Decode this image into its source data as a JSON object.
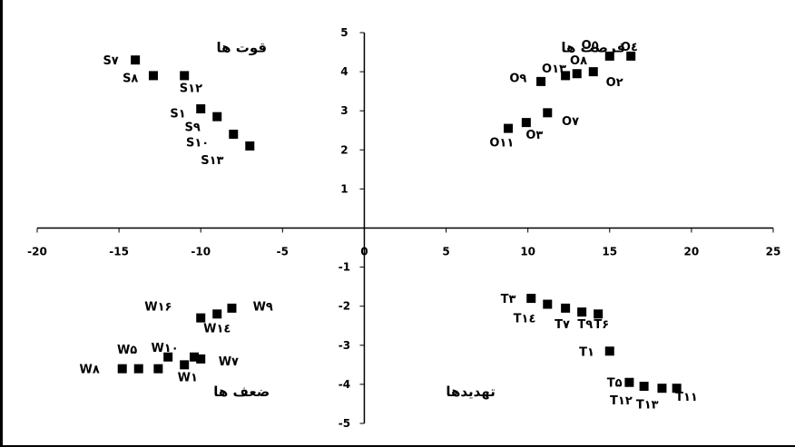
{
  "chart_data": {
    "type": "scatter",
    "title": "",
    "xlabel": "",
    "ylabel": "",
    "xlim": [
      -20,
      25
    ],
    "ylim": [
      -5,
      5
    ],
    "x_ticks": [
      -20,
      -15,
      -10,
      -5,
      0,
      5,
      10,
      15,
      20,
      25
    ],
    "y_ticks": [
      -5,
      -4,
      -3,
      -2,
      -1,
      0,
      1,
      2,
      3,
      4,
      5
    ],
    "x_tick_labels": [
      "-20",
      "-15",
      "-10",
      "-5",
      "0",
      "5",
      "10",
      "15",
      "20",
      "25"
    ],
    "y_tick_labels": [
      "-5",
      "-4",
      "-3",
      "-2",
      "-1",
      "0",
      "1",
      "2",
      "3",
      "4",
      "5"
    ],
    "grid": false,
    "marker": "square",
    "marker_color": "#000000",
    "quadrant_labels": [
      {
        "text": "قوت ها",
        "x": -7.5,
        "y": 4.5
      },
      {
        "text": "فرصت ها",
        "x": 14,
        "y": 4.5
      },
      {
        "text": "ضعف ها",
        "x": -7.5,
        "y": -4.3
      },
      {
        "text": "تهدیدها",
        "x": 6.5,
        "y": -4.3
      }
    ],
    "points": [
      {
        "label": "S۷",
        "x": -14,
        "y": 4.3,
        "lx": -15.5,
        "ly": 4.3
      },
      {
        "label": "S۸",
        "x": -12.9,
        "y": 3.9,
        "lx": -14.3,
        "ly": 3.85
      },
      {
        "label": "S۱۲",
        "x": -11,
        "y": 3.9,
        "lx": -10.6,
        "ly": 3.6
      },
      {
        "label": "S۱",
        "x": -10,
        "y": 3.05,
        "lx": -11.4,
        "ly": 2.95
      },
      {
        "label": "S۹",
        "x": -9,
        "y": 2.85,
        "lx": -10.5,
        "ly": 2.6
      },
      {
        "label": "S۱۰",
        "x": -8,
        "y": 2.4,
        "lx": -10.2,
        "ly": 2.2
      },
      {
        "label": "S۱۳",
        "x": -7,
        "y": 2.1,
        "lx": -9.3,
        "ly": 1.75
      },
      {
        "label": "O۵",
        "x": 15,
        "y": 4.4,
        "lx": 13.8,
        "ly": 4.7
      },
      {
        "label": "O٤",
        "x": 16.3,
        "y": 4.4,
        "lx": 16.2,
        "ly": 4.65
      },
      {
        "label": "O۸",
        "x": 14,
        "y": 4.0,
        "lx": 13.1,
        "ly": 4.3
      },
      {
        "label": "O۱۳",
        "x": 13,
        "y": 3.95,
        "lx": 11.6,
        "ly": 4.1
      },
      {
        "label": "O۹",
        "x": 10.8,
        "y": 3.75,
        "lx": 9.4,
        "ly": 3.85
      },
      {
        "label": "O۲",
        "x": 12.3,
        "y": 3.9,
        "lx": 15.3,
        "ly": 3.75
      },
      {
        "label": "O۷",
        "x": 11.2,
        "y": 2.95,
        "lx": 12.6,
        "ly": 2.75
      },
      {
        "label": "O۳",
        "x": 9.9,
        "y": 2.7,
        "lx": 10.4,
        "ly": 2.4
      },
      {
        "label": "O۱۱",
        "x": 8.8,
        "y": 2.55,
        "lx": 8.4,
        "ly": 2.2
      },
      {
        "label": "T۳",
        "x": 10.2,
        "y": -1.8,
        "lx": 8.8,
        "ly": -1.8
      },
      {
        "label": "T۱٤",
        "x": 11.2,
        "y": -1.95,
        "lx": 9.8,
        "ly": -2.3
      },
      {
        "label": "T۷",
        "x": 12.3,
        "y": -2.05,
        "lx": 12.1,
        "ly": -2.45
      },
      {
        "label": "T۹",
        "x": 13.3,
        "y": -2.15,
        "lx": 13.5,
        "ly": -2.45
      },
      {
        "label": "T۶",
        "x": 14.3,
        "y": -2.2,
        "lx": 14.5,
        "ly": -2.45
      },
      {
        "label": "T۱",
        "x": 15,
        "y": -3.15,
        "lx": 13.6,
        "ly": -3.15
      },
      {
        "label": "T۵",
        "x": 16.2,
        "y": -3.95,
        "lx": 15.3,
        "ly": -3.95
      },
      {
        "label": "T۱۲",
        "x": 17.1,
        "y": -4.05,
        "lx": 15.7,
        "ly": -4.4
      },
      {
        "label": "T۱۳",
        "x": 18.2,
        "y": -4.1,
        "lx": 17.3,
        "ly": -4.5
      },
      {
        "label": "T۱۱",
        "x": 19.1,
        "y": -4.1,
        "lx": 19.7,
        "ly": -4.3
      },
      {
        "label": "W۱۶",
        "x": -10,
        "y": -2.3,
        "lx": -12.6,
        "ly": -2.0
      },
      {
        "label": "W۱٤",
        "x": -9,
        "y": -2.2,
        "lx": -9,
        "ly": -2.55
      },
      {
        "label": "W۹",
        "x": -8.1,
        "y": -2.05,
        "lx": -6.2,
        "ly": -2.0
      },
      {
        "label": "W۵",
        "x": -12,
        "y": -3.3,
        "lx": -14.5,
        "ly": -3.1
      },
      {
        "label": "W۱۰",
        "x": -10.4,
        "y": -3.3,
        "lx": -12.2,
        "ly": -3.05
      },
      {
        "label": "W۷",
        "x": -10,
        "y": -3.35,
        "lx": -8.3,
        "ly": -3.4
      },
      {
        "label": "W۸",
        "x": -14.8,
        "y": -3.6,
        "lx": -16.8,
        "ly": -3.6
      },
      {
        "label": "W۱",
        "x": -11,
        "y": -3.5,
        "lx": -10.8,
        "ly": -3.8
      }
    ],
    "extra_points": [
      {
        "x": -13.8,
        "y": -3.6
      },
      {
        "x": -12.6,
        "y": -3.6
      }
    ]
  }
}
